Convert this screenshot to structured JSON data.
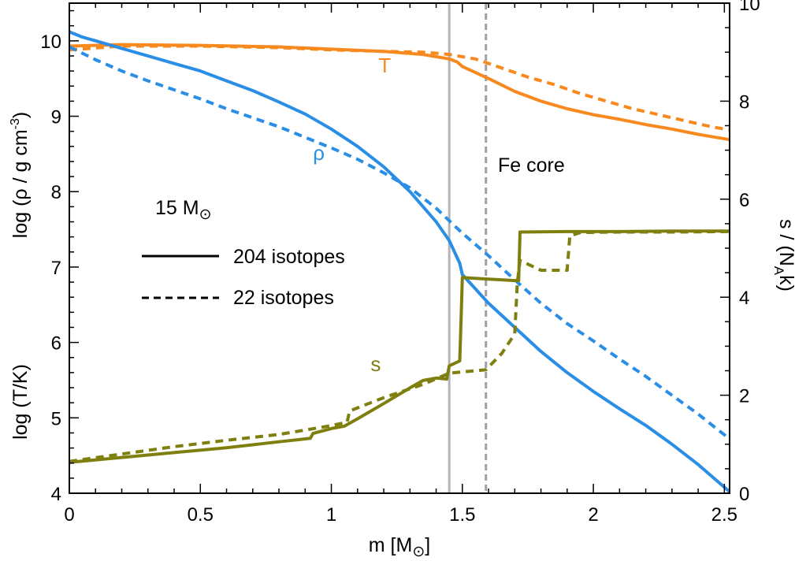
{
  "chart_data": {
    "type": "line",
    "xlabel": "m [M",
    "xlabel_sub": "⊙",
    "xlabel_close": "]",
    "ylabel_left_top": "log (ρ / g cm",
    "ylabel_left_top_sup": "-3",
    "ylabel_left_top_close": ")",
    "ylabel_left_bottom": "log (T/K)",
    "ylabel_right": "s / (N",
    "ylabel_right_sub": "A",
    "ylabel_right_close": "k)",
    "xlim": [
      0,
      2.52
    ],
    "ylim_left": [
      4,
      10.5
    ],
    "ylim_right": [
      0,
      10
    ],
    "x_ticks": [
      0,
      0.5,
      1,
      1.5,
      2,
      2.5
    ],
    "x_tick_labels": [
      "0",
      "0.5",
      "1",
      "1.5",
      "2",
      "2.5"
    ],
    "y_left_ticks": [
      4,
      5,
      6,
      7,
      8,
      9,
      10
    ],
    "y_left_tick_labels": [
      "4",
      "5",
      "6",
      "7",
      "8",
      "9",
      "10"
    ],
    "y_right_ticks": [
      0,
      2,
      4,
      6,
      8,
      10
    ],
    "y_right_tick_labels": [
      "0",
      "2",
      "4",
      "6",
      "8",
      "10"
    ],
    "mass_label": "15 M",
    "mass_label_sub": "⊙",
    "legend": [
      {
        "label": "204 isotopes",
        "style": "solid"
      },
      {
        "label": "22 isotopes",
        "style": "dashed"
      }
    ],
    "vlines": [
      {
        "x": 1.45,
        "color": "#b4b4b4",
        "style": "solid"
      },
      {
        "x": 1.59,
        "color": "#a0a0a0",
        "style": "dashed",
        "label": "Fe core"
      }
    ],
    "curve_labels": [
      {
        "text": "T",
        "color": "#f7891f",
        "x": 1.18,
        "y": 9.58
      },
      {
        "text": "ρ",
        "color": "#2a8ee6",
        "x": 0.93,
        "y": 8.42
      },
      {
        "text": "s",
        "color": "#7f7f10",
        "x": 1.15,
        "y": 5.62
      }
    ],
    "colors": {
      "T": "#f7891f",
      "rho": "#2a8ee6",
      "s": "#7f7f10"
    },
    "series": [
      {
        "curve": "T",
        "axis": "left",
        "style": "solid",
        "x": [
          0,
          0.2,
          0.5,
          0.8,
          1.0,
          1.2,
          1.35,
          1.45,
          1.48,
          1.5,
          1.6,
          1.7,
          1.8,
          1.9,
          2.0,
          2.1,
          2.2,
          2.3,
          2.4,
          2.52
        ],
        "y": [
          9.93,
          9.95,
          9.94,
          9.92,
          9.89,
          9.86,
          9.82,
          9.76,
          9.72,
          9.66,
          9.5,
          9.33,
          9.2,
          9.1,
          9.02,
          8.96,
          8.89,
          8.83,
          8.76,
          8.69
        ]
      },
      {
        "curve": "T",
        "axis": "left",
        "style": "dashed",
        "x": [
          0,
          0.2,
          0.5,
          0.8,
          1.0,
          1.2,
          1.35,
          1.45,
          1.55,
          1.65,
          1.75,
          1.85,
          1.95,
          2.05,
          2.15,
          2.25,
          2.35,
          2.45,
          2.52
        ],
        "y": [
          9.88,
          9.93,
          9.93,
          9.91,
          9.88,
          9.86,
          9.85,
          9.82,
          9.76,
          9.64,
          9.52,
          9.42,
          9.3,
          9.2,
          9.1,
          9.02,
          8.94,
          8.86,
          8.82
        ]
      },
      {
        "curve": "rho",
        "axis": "left",
        "style": "solid",
        "x": [
          0,
          0.05,
          0.1,
          0.2,
          0.3,
          0.4,
          0.5,
          0.6,
          0.7,
          0.8,
          0.9,
          1.0,
          1.1,
          1.2,
          1.3,
          1.4,
          1.45,
          1.49,
          1.5,
          1.6,
          1.7,
          1.8,
          1.9,
          2.0,
          2.1,
          2.2,
          2.3,
          2.4,
          2.52
        ],
        "y": [
          10.12,
          10.05,
          10.0,
          9.9,
          9.8,
          9.7,
          9.6,
          9.47,
          9.34,
          9.19,
          9.03,
          8.83,
          8.6,
          8.33,
          8.0,
          7.6,
          7.35,
          7.05,
          6.9,
          6.52,
          6.2,
          5.88,
          5.6,
          5.35,
          5.12,
          4.9,
          4.65,
          4.38,
          4.02
        ]
      },
      {
        "curve": "rho",
        "axis": "left",
        "style": "dashed",
        "x": [
          0,
          0.1,
          0.2,
          0.3,
          0.4,
          0.5,
          0.6,
          0.7,
          0.8,
          0.9,
          1.0,
          1.1,
          1.2,
          1.3,
          1.4,
          1.5,
          1.6,
          1.7,
          1.8,
          1.9,
          2.0,
          2.1,
          2.2,
          2.3,
          2.4,
          2.52
        ],
        "y": [
          9.92,
          9.75,
          9.6,
          9.47,
          9.35,
          9.23,
          9.1,
          8.98,
          8.86,
          8.72,
          8.58,
          8.43,
          8.25,
          8.05,
          7.78,
          7.45,
          7.15,
          6.83,
          6.52,
          6.25,
          6.02,
          5.78,
          5.55,
          5.3,
          5.05,
          4.72
        ]
      },
      {
        "curve": "s",
        "axis": "right",
        "style": "solid",
        "x": [
          0,
          0.2,
          0.4,
          0.6,
          0.8,
          0.92,
          0.93,
          1.0,
          1.05,
          1.1,
          1.2,
          1.3,
          1.35,
          1.4,
          1.44,
          1.45,
          1.49,
          1.495,
          1.5,
          1.6,
          1.7,
          1.715,
          1.72,
          1.9,
          2.1,
          2.3,
          2.52
        ],
        "y": [
          0.63,
          0.73,
          0.83,
          0.93,
          1.05,
          1.12,
          1.22,
          1.32,
          1.37,
          1.52,
          1.83,
          2.15,
          2.3,
          2.35,
          2.33,
          2.6,
          2.7,
          3.5,
          4.4,
          4.37,
          4.34,
          4.34,
          5.33,
          5.34,
          5.34,
          5.35,
          5.35
        ]
      },
      {
        "curve": "s",
        "axis": "right",
        "style": "dashed",
        "x": [
          0,
          0.2,
          0.4,
          0.6,
          0.8,
          1.0,
          1.06,
          1.07,
          1.2,
          1.35,
          1.45,
          1.55,
          1.59,
          1.65,
          1.7,
          1.71,
          1.72,
          1.8,
          1.9,
          1.91,
          1.95,
          2.1,
          2.3,
          2.52
        ],
        "y": [
          0.65,
          0.8,
          0.95,
          1.08,
          1.2,
          1.38,
          1.45,
          1.68,
          1.95,
          2.22,
          2.45,
          2.5,
          2.52,
          2.85,
          3.25,
          4.3,
          4.75,
          4.55,
          4.55,
          5.25,
          5.32,
          5.33,
          5.33,
          5.34
        ]
      }
    ]
  }
}
